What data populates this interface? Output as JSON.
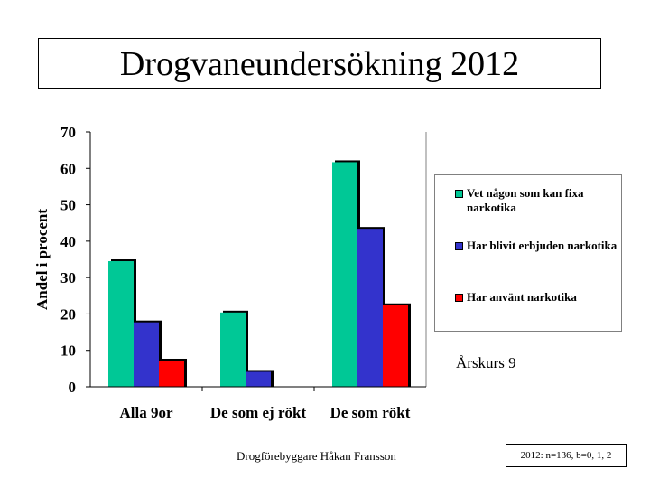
{
  "title": "Drogvaneundersökning 2012",
  "chart_data": {
    "type": "bar",
    "ylabel": "Andel i procent",
    "ylim": [
      0,
      70
    ],
    "yticks": [
      0,
      10,
      20,
      30,
      40,
      50,
      60,
      70
    ],
    "categories": [
      "Alla 9or",
      "De som ej rökt",
      "De som rökt"
    ],
    "series": [
      {
        "name": "Vet någon som kan fixa narkotika",
        "values": [
          34.5,
          20.4,
          61.7
        ],
        "color": "#00c896"
      },
      {
        "name": "Har blivit erbjuden narkotika",
        "values": [
          17.7,
          4.1,
          43.4
        ],
        "color": "#3333cc"
      },
      {
        "name": "Har använt narkotika",
        "values": [
          7.2,
          null,
          22.4
        ],
        "color": "#ff0000"
      }
    ],
    "legend_position": "right"
  },
  "subtitle": "Årskurs 9",
  "footer": {
    "author": "Drogförebyggare Håkan Fransson",
    "sample_info": "2012: n=136, b=0, 1, 2"
  }
}
